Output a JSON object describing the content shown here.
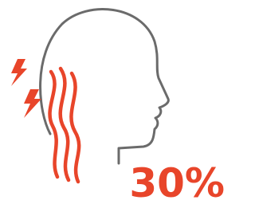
{
  "stat": {
    "label": "30%"
  }
}
